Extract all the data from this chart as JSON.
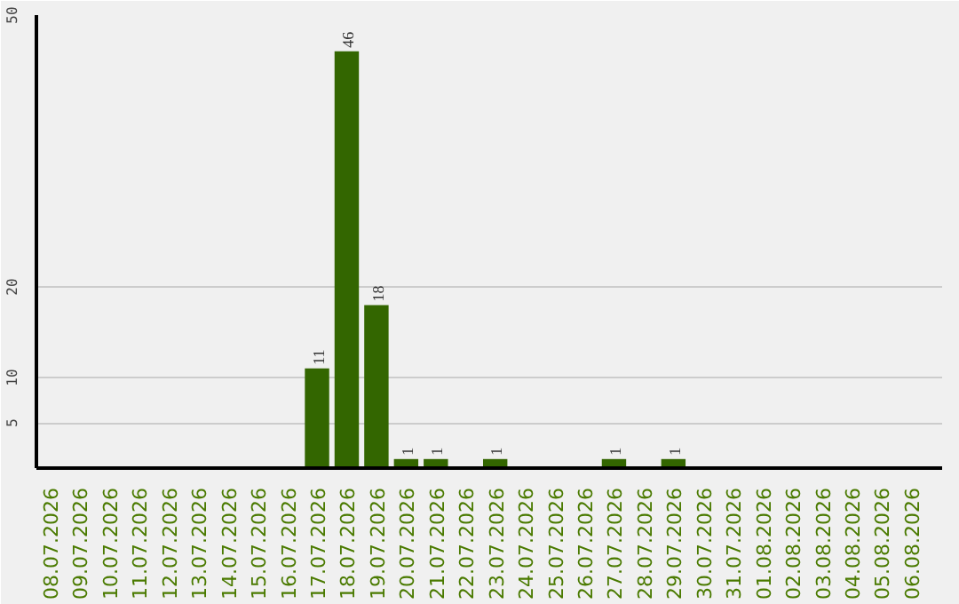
{
  "chart_data": {
    "type": "bar",
    "categories": [
      "08.07.2026",
      "09.07.2026",
      "10.07.2026",
      "11.07.2026",
      "12.07.2026",
      "13.07.2026",
      "14.07.2026",
      "15.07.2026",
      "16.07.2026",
      "17.07.2026",
      "18.07.2026",
      "19.07.2026",
      "20.07.2026",
      "21.07.2026",
      "22.07.2026",
      "23.07.2026",
      "24.07.2026",
      "25.07.2026",
      "26.07.2026",
      "27.07.2026",
      "28.07.2026",
      "29.07.2026",
      "30.07.2026",
      "31.07.2026",
      "01.08.2026",
      "02.08.2026",
      "03.08.2026",
      "04.08.2026",
      "05.08.2026",
      "06.08.2026"
    ],
    "values": [
      0,
      0,
      0,
      0,
      0,
      0,
      0,
      0,
      0,
      11,
      46,
      18,
      1,
      1,
      0,
      1,
      0,
      0,
      0,
      1,
      0,
      1,
      0,
      0,
      0,
      0,
      0,
      0,
      0,
      0
    ],
    "value_labels": [
      null,
      null,
      null,
      null,
      null,
      null,
      null,
      null,
      null,
      "11",
      "46",
      "18",
      "1",
      "1",
      null,
      "1",
      null,
      null,
      null,
      "1",
      null,
      "1",
      null,
      null,
      null,
      null,
      null,
      null,
      null,
      null
    ],
    "color": "#336600",
    "ylim": [
      0,
      50
    ],
    "yticks": [
      5,
      10,
      20,
      50
    ],
    "grid": "y"
  }
}
